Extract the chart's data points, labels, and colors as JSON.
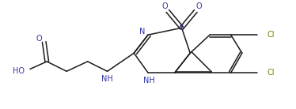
{
  "bg_color": "#ffffff",
  "line_color": "#1a1a1a",
  "atom_color": "#3333aa",
  "cl_color": "#7a7a00",
  "lw": 1.1,
  "fs": 7.0,
  "figsize": [
    3.74,
    1.38
  ],
  "dpi": 100,
  "xlim": [
    0,
    10.5
  ],
  "ylim": [
    0,
    3.8
  ]
}
